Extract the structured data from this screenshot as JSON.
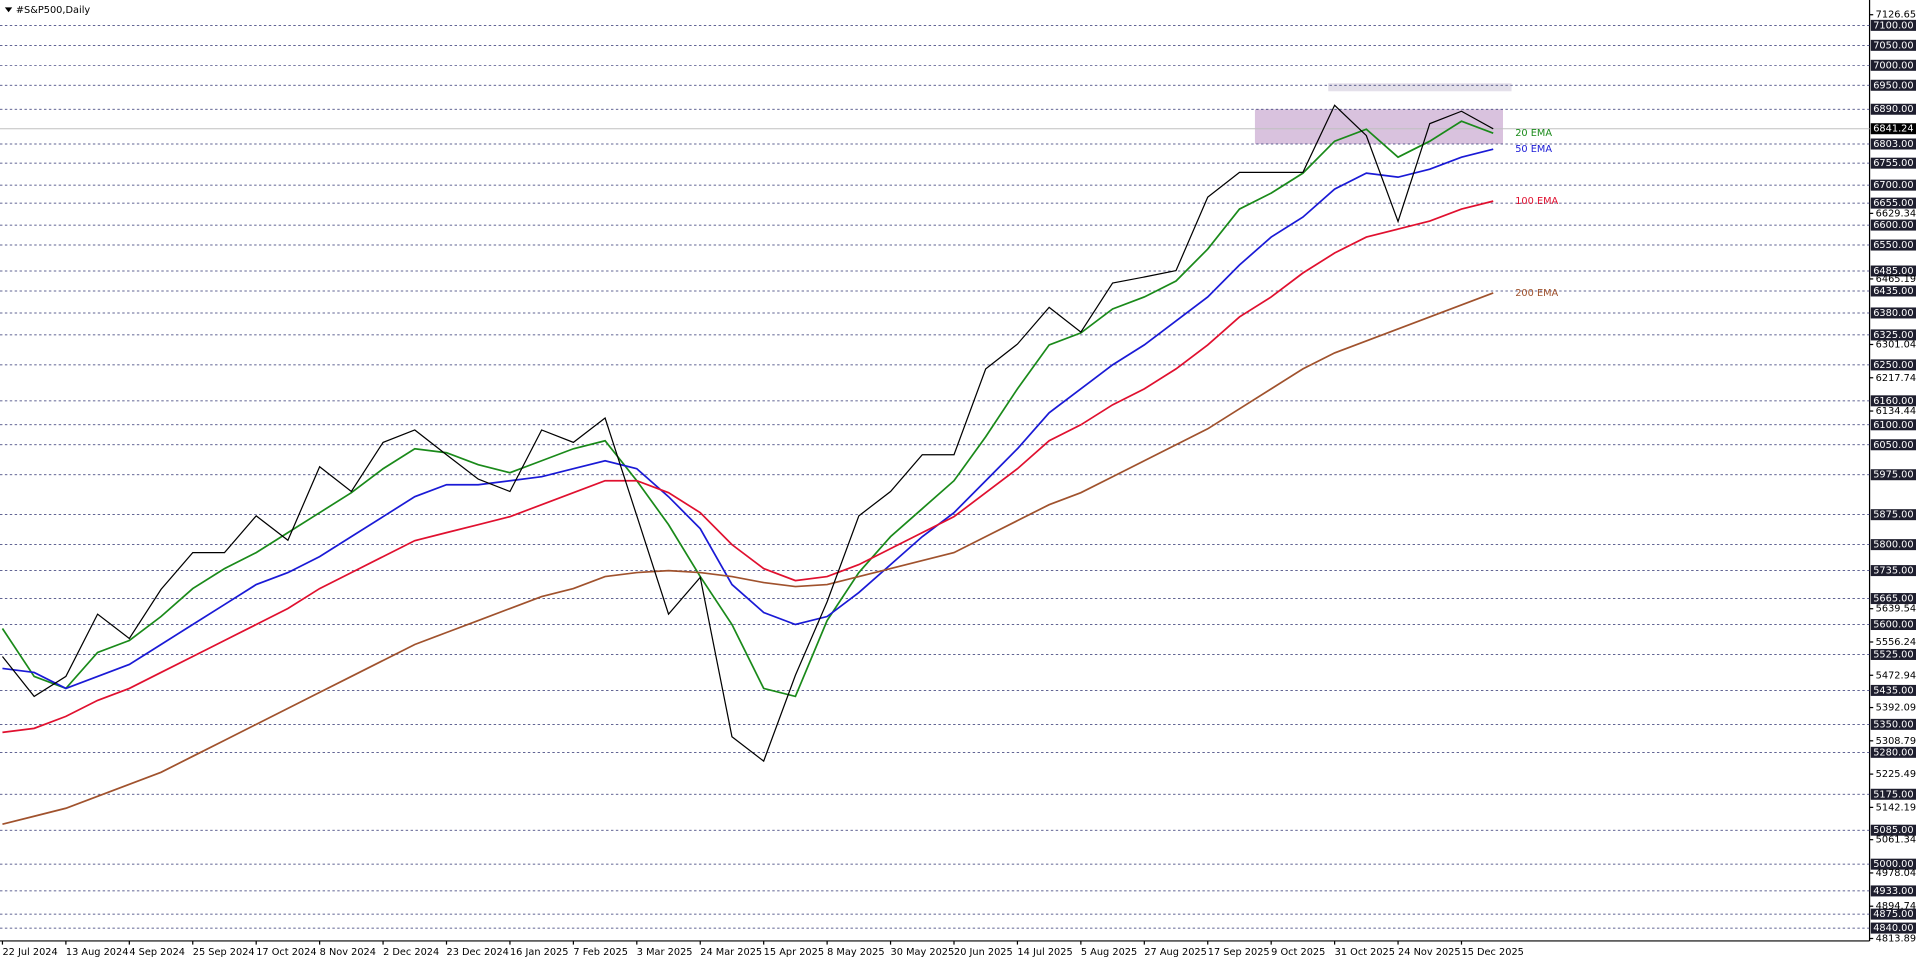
{
  "chart_data": {
    "type": "line",
    "title": "#S&P500,Daily",
    "color": "#000000",
    "categories": [
      "22 Jul 2024",
      null,
      "13 Aug 2024",
      null,
      "4 Sep 2024",
      null,
      "25 Sep 2024",
      null,
      "17 Oct 2024",
      null,
      "8 Nov 2024",
      null,
      "2 Dec 2024",
      null,
      "23 Dec 2024",
      null,
      "16 Jan 2025",
      null,
      "7 Feb 2025",
      null,
      "3 Mar 2025",
      null,
      "24 Mar 2025",
      null,
      "15 Apr 2025",
      null,
      "8 May 2025",
      null,
      "30 May 2025",
      null,
      "20 Jun 2025",
      null,
      "14 Jul 2025",
      null,
      "5 Aug 2025",
      null,
      "27 Aug 2025",
      null,
      "17 Sep 2025",
      null,
      "9 Oct 2025",
      null,
      "31 Oct 2025",
      null,
      "24 Nov 2025",
      null,
      "15 Dec 2025",
      null
    ],
    "values": [
      5520,
      5420,
      5470,
      5626,
      5565,
      5688,
      5780,
      5780,
      5872,
      5811,
      5995,
      5933,
      6056,
      6087,
      6025,
      5964,
      5933,
      6087,
      6056,
      6117,
      5872,
      5626,
      5718,
      5319,
      5258,
      5473,
      5657,
      5872,
      5933,
      6025,
      6025,
      6240,
      6302,
      6394,
      6332,
      6455,
      6470,
      6486,
      6670,
      6732,
      6732,
      6732,
      6900,
      6824,
      6609,
      6854,
      6885,
      6841
    ],
    "series": [
      {
        "name": "20 EMA",
        "color": "#1a8a1a",
        "values": [
          5590,
          5470,
          5440,
          5530,
          5560,
          5620,
          5690,
          5740,
          5780,
          5830,
          5880,
          5930,
          5990,
          6040,
          6030,
          6000,
          5980,
          6010,
          6040,
          6060,
          5960,
          5850,
          5720,
          5600,
          5440,
          5420,
          5610,
          5730,
          5820,
          5890,
          5960,
          6070,
          6190,
          6300,
          6330,
          6390,
          6420,
          6460,
          6540,
          6640,
          6680,
          6730,
          6810,
          6840,
          6770,
          6810,
          6860,
          6830
        ]
      },
      {
        "name": "50 EMA",
        "color": "#1a1ad6",
        "values": [
          5490,
          5480,
          5440,
          5470,
          5500,
          5550,
          5600,
          5650,
          5700,
          5730,
          5770,
          5820,
          5870,
          5920,
          5950,
          5950,
          5960,
          5970,
          5990,
          6010,
          5990,
          5920,
          5840,
          5700,
          5630,
          5600,
          5620,
          5680,
          5750,
          5820,
          5880,
          5960,
          6040,
          6130,
          6190,
          6250,
          6300,
          6360,
          6420,
          6500,
          6570,
          6620,
          6690,
          6730,
          6720,
          6740,
          6770,
          6790
        ]
      },
      {
        "name": "100 EMA",
        "color": "#e0102f",
        "values": [
          5330,
          5340,
          5370,
          5410,
          5440,
          5480,
          5520,
          5560,
          5600,
          5640,
          5690,
          5730,
          5770,
          5810,
          5830,
          5850,
          5870,
          5900,
          5930,
          5960,
          5960,
          5930,
          5880,
          5800,
          5740,
          5710,
          5720,
          5750,
          5790,
          5830,
          5870,
          5930,
          5990,
          6060,
          6100,
          6150,
          6190,
          6240,
          6300,
          6370,
          6420,
          6480,
          6530,
          6570,
          6590,
          6610,
          6640,
          6660
        ]
      },
      {
        "name": "200 EMA",
        "color": "#a0522d",
        "values": [
          5100,
          5120,
          5140,
          5170,
          5200,
          5230,
          5270,
          5310,
          5350,
          5390,
          5430,
          5470,
          5510,
          5550,
          5580,
          5610,
          5640,
          5670,
          5690,
          5720,
          5730,
          5735,
          5730,
          5720,
          5705,
          5695,
          5700,
          5720,
          5740,
          5760,
          5780,
          5820,
          5860,
          5900,
          5930,
          5970,
          6010,
          6050,
          6090,
          6140,
          6190,
          6240,
          6280,
          6310,
          6340,
          6370,
          6400,
          6430
        ]
      }
    ],
    "ylim": [
      4813.89,
      7126.65
    ],
    "yticks": [
      7126.65,
      6629.34,
      6465.19,
      6301.04,
      6217.74,
      6134.44,
      5639.54,
      5556.24,
      5472.94,
      5392.09,
      5308.79,
      5225.49,
      5142.19,
      5061.34,
      4978.04,
      4894.74,
      4813.89
    ],
    "levels": [
      {
        "value": 7100,
        "label": "7100.00"
      },
      {
        "value": 7050,
        "label": "7050.00"
      },
      {
        "value": 7000,
        "label": "7000.00"
      },
      {
        "value": 6950,
        "label": "6950.00"
      },
      {
        "value": 6890,
        "label": "6890.00"
      },
      {
        "value": 6803,
        "label": "6803.00"
      },
      {
        "value": 6755,
        "label": "6755.00"
      },
      {
        "value": 6700,
        "label": "6700.00"
      },
      {
        "value": 6655,
        "label": "6655.00"
      },
      {
        "value": 6600,
        "label": "6600.00"
      },
      {
        "value": 6550,
        "label": "6550.00"
      },
      {
        "value": 6485,
        "label": "6485.00"
      },
      {
        "value": 6435,
        "label": "6435.00"
      },
      {
        "value": 6380,
        "label": "6380.00"
      },
      {
        "value": 6325,
        "label": "6325.00"
      },
      {
        "value": 6250,
        "label": "6250.00"
      },
      {
        "value": 6160,
        "label": "6160.00"
      },
      {
        "value": 6100,
        "label": "6100.00"
      },
      {
        "value": 6050,
        "label": "6050.00"
      },
      {
        "value": 5975,
        "label": "5975.00"
      },
      {
        "value": 5875,
        "label": "5875.00"
      },
      {
        "value": 5800,
        "label": "5800.00"
      },
      {
        "value": 5735,
        "label": "5735.00"
      },
      {
        "value": 5665,
        "label": "5665.00"
      },
      {
        "value": 5600,
        "label": "5600.00"
      },
      {
        "value": 5525,
        "label": "5525.00"
      },
      {
        "value": 5435,
        "label": "5435.00"
      },
      {
        "value": 5350,
        "label": "5350.00"
      },
      {
        "value": 5280,
        "label": "5280.00"
      },
      {
        "value": 5175,
        "label": "5175.00"
      },
      {
        "value": 5085,
        "label": "5085.00"
      },
      {
        "value": 5000,
        "label": "5000.00"
      },
      {
        "value": 4933,
        "label": "4933.00"
      },
      {
        "value": 4875,
        "label": "4875.00"
      },
      {
        "value": 4840,
        "label": "4840.00"
      }
    ],
    "last_price": 6841.24,
    "zones": [
      {
        "from": 6803,
        "to": 6890,
        "color": "#d9c2de"
      },
      {
        "from": 6935,
        "to": 6955,
        "color": "#e4e0ea"
      }
    ]
  }
}
